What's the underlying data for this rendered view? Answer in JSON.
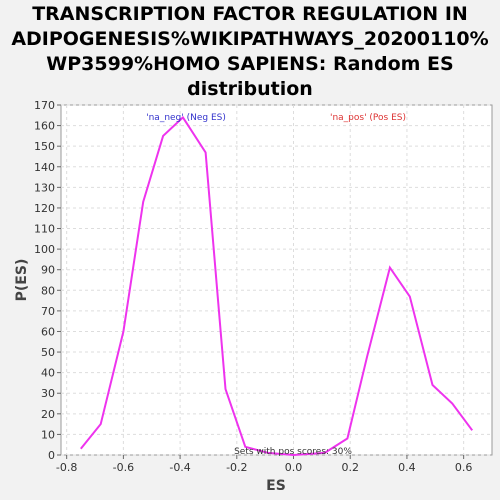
{
  "chart_data": {
    "type": "line",
    "title_lines": [
      "TRANSCRIPTION FACTOR REGULATION IN",
      "ADIPOGENESIS%WIKIPATHWAYS_20200110%",
      "WP3599%HOMO SAPIENS: Random ES",
      "distribution"
    ],
    "xlabel": "ES",
    "ylabel": "P(ES)",
    "xlim": [
      -0.82,
      0.7
    ],
    "ylim": [
      0,
      170
    ],
    "xticks": [
      -0.8,
      -0.6,
      -0.4,
      -0.2,
      0.0,
      0.2,
      0.4,
      0.6
    ],
    "xtick_labels": [
      "-0.8",
      "-0.6",
      "-0.4",
      "-0.2",
      "0.0",
      "0.2",
      "0.4",
      "0.6"
    ],
    "yticks": [
      0,
      10,
      20,
      30,
      40,
      50,
      60,
      70,
      80,
      90,
      100,
      110,
      120,
      130,
      140,
      150,
      160,
      170
    ],
    "ytick_labels": [
      "0",
      "10",
      "20",
      "30",
      "40",
      "50",
      "60",
      "70",
      "80",
      "90",
      "100",
      "110",
      "120",
      "130",
      "140",
      "150",
      "160",
      "170"
    ],
    "grid": true,
    "series": [
      {
        "name": "Random ES distribution",
        "color": "#ee33ee",
        "x": [
          -0.75,
          -0.68,
          -0.6,
          -0.53,
          -0.46,
          -0.39,
          -0.31,
          -0.24,
          -0.17,
          -0.09,
          0.0,
          0.11,
          0.19,
          0.26,
          0.34,
          0.41,
          0.49,
          0.56,
          0.63
        ],
        "y": [
          3,
          15,
          60,
          123,
          155,
          164,
          147,
          32,
          4,
          1,
          0,
          1,
          8,
          48,
          91,
          77,
          34,
          25,
          12
        ]
      }
    ],
    "legend": [
      {
        "label": "'na_neg' (Neg ES)",
        "color": "#3333cc",
        "position": "top-center-left"
      },
      {
        "label": "'na_pos' (Pos ES)",
        "color": "#dd3333",
        "position": "top-right"
      }
    ],
    "annotation": "Sets with pos scores: 30%"
  }
}
